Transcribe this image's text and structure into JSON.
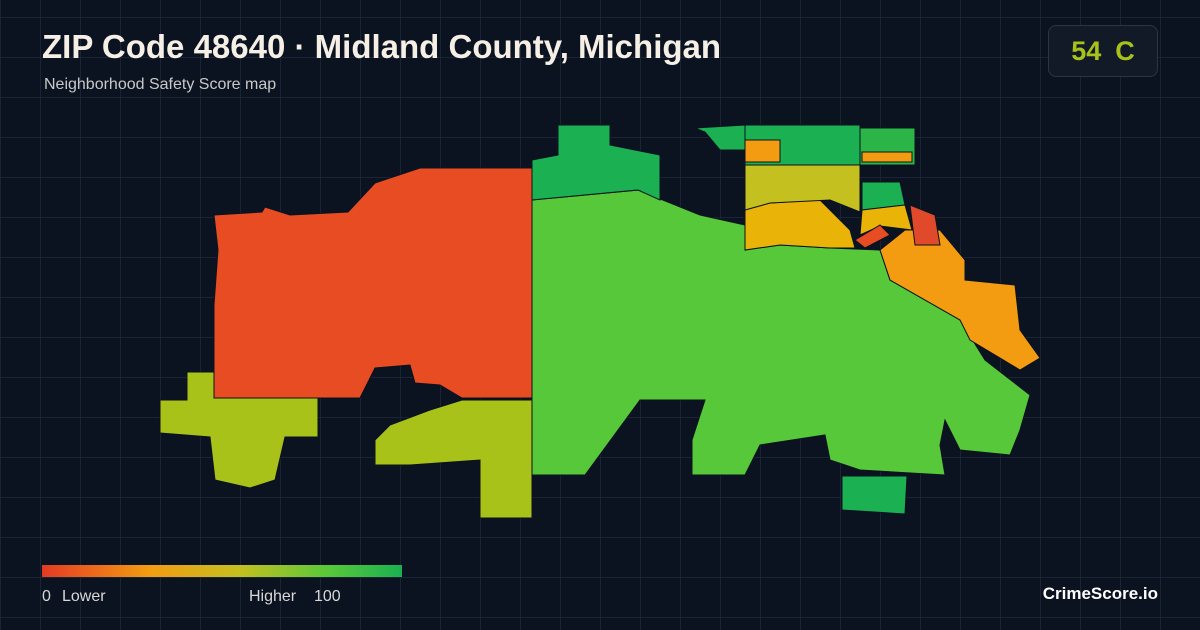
{
  "header": {
    "title": "ZIP Code 48640 · Midland County, Michigan",
    "subtitle": "Neighborhood Safety Score map"
  },
  "score": {
    "value": 54,
    "grade": "C"
  },
  "legend": {
    "min": 0,
    "min_label": "Lower",
    "max_label": "Higher",
    "max": 100
  },
  "brand": "CrimeScore.io"
}
